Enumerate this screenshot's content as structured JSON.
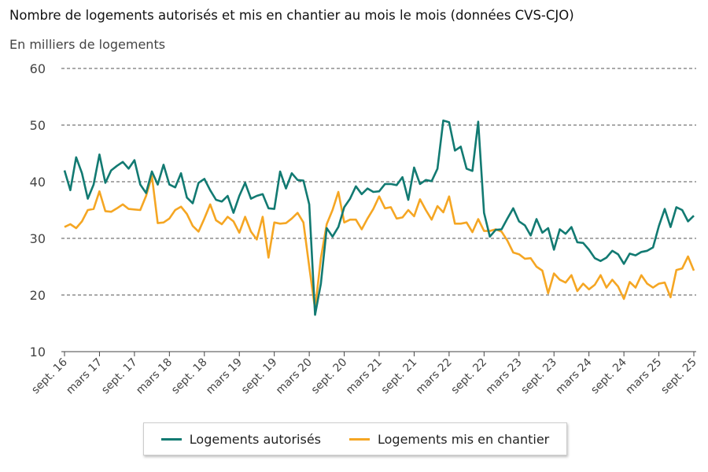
{
  "chart_data": {
    "type": "line",
    "title": "Nombre de logements autorisés et mis en chantier au mois le mois (données CVS-CJO)",
    "ylabel": "En milliers de logements",
    "ylim": [
      10,
      60
    ],
    "yticks": [
      10,
      20,
      30,
      40,
      50,
      60
    ],
    "grid": true,
    "legend_position": "bottom",
    "x_start": "2016-09",
    "x_end": "2025-09",
    "xtick_labels": [
      "sept. 16",
      "mars 17",
      "sept. 17",
      "mars 18",
      "sept. 18",
      "mars 19",
      "sept. 19",
      "mars 20",
      "sept. 20",
      "mars 21",
      "sept. 21",
      "mars 22",
      "sept. 22",
      "mars 23",
      "sept. 23",
      "mars 24",
      "sept. 24",
      "mars 25",
      "sept. 25"
    ],
    "series": [
      {
        "name": "Logements autorisés",
        "color": "#127a72",
        "values": [
          42,
          38.5,
          44.3,
          41.5,
          37,
          39.5,
          44.8,
          39.8,
          42,
          42.8,
          43.5,
          42.3,
          43.8,
          39.5,
          38,
          41.8,
          39.5,
          43,
          39.5,
          39,
          41.5,
          37.2,
          36.2,
          39.8,
          40.5,
          38.5,
          36.8,
          36.5,
          37.5,
          34.5,
          37.5,
          39.8,
          37,
          37.5,
          37.8,
          35.3,
          35.2,
          41.8,
          38.8,
          41.5,
          40.3,
          40.2,
          36,
          16.5,
          22,
          31.8,
          30.3,
          32,
          35.5,
          37,
          39.2,
          37.8,
          38.8,
          38.2,
          38.3,
          39.6,
          39.6,
          39.4,
          40.8,
          36.8,
          42.5,
          39.6,
          40.3,
          40.1,
          42.3,
          50.8,
          50.5,
          45.5,
          46.2,
          42.3,
          41.9,
          50.6,
          34.5,
          30.3,
          31.5,
          31.6,
          33.5,
          35.3,
          33,
          32.3,
          30.5,
          33.4,
          31,
          31.8,
          28,
          31.6,
          30.8,
          32,
          29.3,
          29.2,
          28,
          26.5,
          26,
          26.6,
          27.8,
          27.2,
          25.5,
          27.3,
          27,
          27.6,
          27.8,
          28.4,
          32.2,
          35.2,
          32,
          35.5,
          35,
          33,
          34
        ]
      },
      {
        "name": "Logements mis en chantier",
        "color": "#f5a623",
        "values": [
          32,
          32.5,
          31.8,
          33,
          35,
          35.2,
          38.3,
          34.8,
          34.7,
          35.3,
          36,
          35.2,
          35.1,
          35,
          37.5,
          41,
          32.7,
          32.8,
          33.5,
          35,
          35.6,
          34.3,
          32.2,
          31.2,
          33.5,
          36,
          33.2,
          32.5,
          33.8,
          33,
          31,
          33.8,
          31.2,
          29.8,
          33.8,
          26.6,
          32.8,
          32.6,
          32.7,
          33.5,
          34.5,
          32.8,
          25,
          17.5,
          26.5,
          32.5,
          35,
          38.2,
          32.8,
          33.3,
          33.3,
          31.6,
          33.5,
          35.2,
          37.4,
          35.3,
          35.5,
          33.5,
          33.7,
          35,
          33.9,
          36.9,
          35,
          33.3,
          35.7,
          34.6,
          37.4,
          32.6,
          32.6,
          32.8,
          31.1,
          33.4,
          31.3,
          31.3,
          31.6,
          31.2,
          29.6,
          27.5,
          27.2,
          26.4,
          26.5,
          25,
          24.3,
          20.3,
          23.8,
          22.7,
          22.2,
          23.5,
          20.7,
          22,
          21,
          21.8,
          23.5,
          21.3,
          22.7,
          21.5,
          19.3,
          22.3,
          21.3,
          23.5,
          22,
          21.3,
          22,
          22.2,
          19.6,
          24.4,
          24.7,
          26.8,
          24.3
        ]
      }
    ]
  }
}
